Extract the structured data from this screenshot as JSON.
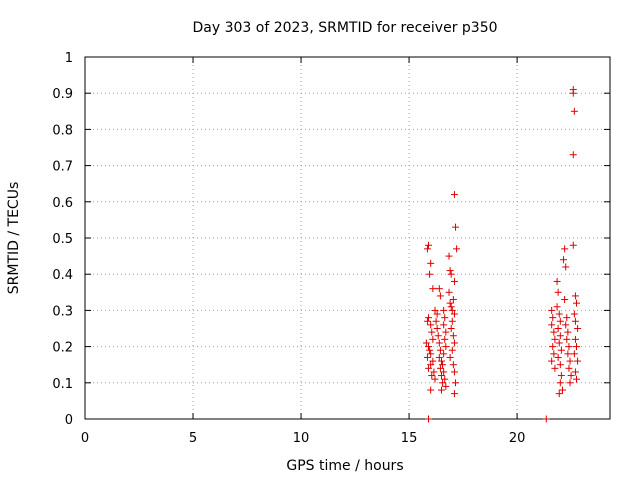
{
  "chart_data": {
    "type": "scatter",
    "title": "Day 303 of 2023, SRMTID for receiver p350",
    "xlabel": "GPS time / hours",
    "ylabel": "SRMTID / TECUs",
    "xlim": [
      0,
      24.3
    ],
    "ylim": [
      0,
      1
    ],
    "x_ticks": [
      "0",
      "5",
      "10",
      "15",
      "20"
    ],
    "y_ticks": [
      "0",
      "0.1",
      "0.2",
      "0.3",
      "0.4",
      "0.5",
      "0.6",
      "0.7",
      "0.8",
      "0.9",
      "1"
    ],
    "grid": true,
    "legend": "none",
    "series": [
      {
        "color": "#e00000",
        "marker": "plus",
        "points": [
          [
            15.85,
            0.47
          ],
          [
            15.9,
            0.48
          ],
          [
            16.0,
            0.43
          ],
          [
            15.95,
            0.4
          ],
          [
            16.1,
            0.36
          ],
          [
            15.9,
            0.28
          ],
          [
            15.85,
            0.27
          ],
          [
            16.0,
            0.26
          ],
          [
            16.05,
            0.24
          ],
          [
            16.1,
            0.22
          ],
          [
            15.8,
            0.21
          ],
          [
            15.9,
            0.2
          ],
          [
            15.95,
            0.19
          ],
          [
            16.0,
            0.18
          ],
          [
            15.85,
            0.17
          ],
          [
            16.1,
            0.16
          ],
          [
            16.0,
            0.15
          ],
          [
            15.9,
            0.14
          ],
          [
            16.15,
            0.13
          ],
          [
            16.05,
            0.12
          ],
          [
            16.2,
            0.11
          ],
          [
            16.0,
            0.08
          ],
          [
            16.2,
            0.3
          ],
          [
            16.3,
            0.29
          ],
          [
            16.25,
            0.27
          ],
          [
            16.3,
            0.25
          ],
          [
            16.35,
            0.23
          ],
          [
            16.4,
            0.21
          ],
          [
            16.45,
            0.19
          ],
          [
            16.4,
            0.17
          ],
          [
            16.5,
            0.16
          ],
          [
            16.45,
            0.14
          ],
          [
            16.5,
            0.12
          ],
          [
            16.55,
            0.1
          ],
          [
            16.5,
            0.08
          ],
          [
            16.4,
            0.36
          ],
          [
            16.45,
            0.34
          ],
          [
            16.6,
            0.3
          ],
          [
            16.65,
            0.28
          ],
          [
            16.6,
            0.26
          ],
          [
            16.7,
            0.24
          ],
          [
            16.65,
            0.22
          ],
          [
            16.7,
            0.2
          ],
          [
            16.6,
            0.18
          ],
          [
            16.55,
            0.15
          ],
          [
            16.6,
            0.13
          ],
          [
            16.65,
            0.11
          ],
          [
            16.7,
            0.09
          ],
          [
            16.85,
            0.45
          ],
          [
            16.9,
            0.41
          ],
          [
            16.95,
            0.4
          ],
          [
            16.85,
            0.35
          ],
          [
            16.9,
            0.32
          ],
          [
            16.95,
            0.31
          ],
          [
            17.0,
            0.3
          ],
          [
            17.05,
            0.33
          ],
          [
            17.1,
            0.29
          ],
          [
            17.0,
            0.27
          ],
          [
            16.95,
            0.25
          ],
          [
            17.05,
            0.23
          ],
          [
            17.1,
            0.21
          ],
          [
            17.0,
            0.19
          ],
          [
            16.9,
            0.17
          ],
          [
            17.05,
            0.15
          ],
          [
            17.1,
            0.13
          ],
          [
            17.1,
            0.62
          ],
          [
            17.15,
            0.53
          ],
          [
            17.2,
            0.47
          ],
          [
            17.1,
            0.38
          ],
          [
            17.15,
            0.1
          ],
          [
            17.1,
            0.07
          ],
          [
            15.9,
            0.0
          ],
          [
            21.6,
            0.3
          ],
          [
            21.65,
            0.28
          ],
          [
            21.6,
            0.26
          ],
          [
            21.7,
            0.24
          ],
          [
            21.75,
            0.22
          ],
          [
            21.65,
            0.2
          ],
          [
            21.7,
            0.18
          ],
          [
            21.6,
            0.16
          ],
          [
            21.75,
            0.14
          ],
          [
            21.85,
            0.38
          ],
          [
            21.9,
            0.35
          ],
          [
            21.85,
            0.31
          ],
          [
            21.95,
            0.29
          ],
          [
            22.0,
            0.27
          ],
          [
            21.9,
            0.25
          ],
          [
            22.0,
            0.23
          ],
          [
            21.95,
            0.21
          ],
          [
            22.05,
            0.19
          ],
          [
            21.9,
            0.17
          ],
          [
            22.0,
            0.15
          ],
          [
            22.05,
            0.12
          ],
          [
            22.0,
            0.1
          ],
          [
            22.1,
            0.08
          ],
          [
            21.95,
            0.07
          ],
          [
            22.2,
            0.47
          ],
          [
            22.15,
            0.44
          ],
          [
            22.25,
            0.42
          ],
          [
            22.2,
            0.33
          ],
          [
            22.3,
            0.28
          ],
          [
            22.25,
            0.26
          ],
          [
            22.35,
            0.24
          ],
          [
            22.3,
            0.22
          ],
          [
            22.4,
            0.2
          ],
          [
            22.35,
            0.18
          ],
          [
            22.45,
            0.16
          ],
          [
            22.4,
            0.14
          ],
          [
            22.5,
            0.12
          ],
          [
            22.45,
            0.1
          ],
          [
            22.6,
            0.91
          ],
          [
            22.6,
            0.9
          ],
          [
            22.65,
            0.85
          ],
          [
            22.6,
            0.73
          ],
          [
            22.6,
            0.48
          ],
          [
            22.7,
            0.34
          ],
          [
            22.75,
            0.32
          ],
          [
            22.65,
            0.29
          ],
          [
            22.7,
            0.27
          ],
          [
            22.8,
            0.25
          ],
          [
            22.7,
            0.22
          ],
          [
            22.75,
            0.2
          ],
          [
            22.65,
            0.18
          ],
          [
            22.8,
            0.16
          ],
          [
            22.7,
            0.13
          ],
          [
            22.75,
            0.11
          ],
          [
            21.35,
            0.0
          ]
        ]
      }
    ]
  }
}
